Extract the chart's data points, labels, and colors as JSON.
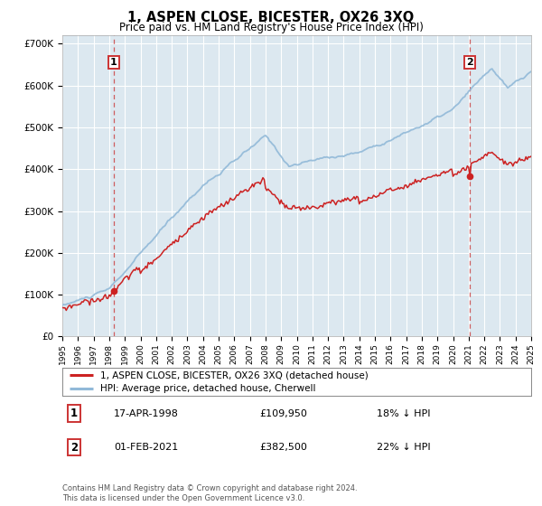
{
  "title": "1, ASPEN CLOSE, BICESTER, OX26 3XQ",
  "subtitle": "Price paid vs. HM Land Registry's House Price Index (HPI)",
  "ylim": [
    0,
    720000
  ],
  "yticks": [
    0,
    100000,
    200000,
    300000,
    400000,
    500000,
    600000,
    700000
  ],
  "ytick_labels": [
    "£0",
    "£100K",
    "£200K",
    "£300K",
    "£400K",
    "£500K",
    "£600K",
    "£700K"
  ],
  "x_start_year": 1995,
  "x_end_year": 2025,
  "hpi_color": "#91b9d8",
  "price_color": "#cc2222",
  "plot_bg_color": "#dce8f0",
  "grid_color": "#ffffff",
  "legend_label_price": "1, ASPEN CLOSE, BICESTER, OX26 3XQ (detached house)",
  "legend_label_hpi": "HPI: Average price, detached house, Cherwell",
  "annotation1_year": 1998.29,
  "annotation1_value": 109950,
  "annotation1_date": "17-APR-1998",
  "annotation1_price": "£109,950",
  "annotation1_hpi": "18% ↓ HPI",
  "annotation2_year": 2021.08,
  "annotation2_value": 382500,
  "annotation2_date": "01-FEB-2021",
  "annotation2_price": "£382,500",
  "annotation2_hpi": "22% ↓ HPI",
  "footer": "Contains HM Land Registry data © Crown copyright and database right 2024.\nThis data is licensed under the Open Government Licence v3.0."
}
